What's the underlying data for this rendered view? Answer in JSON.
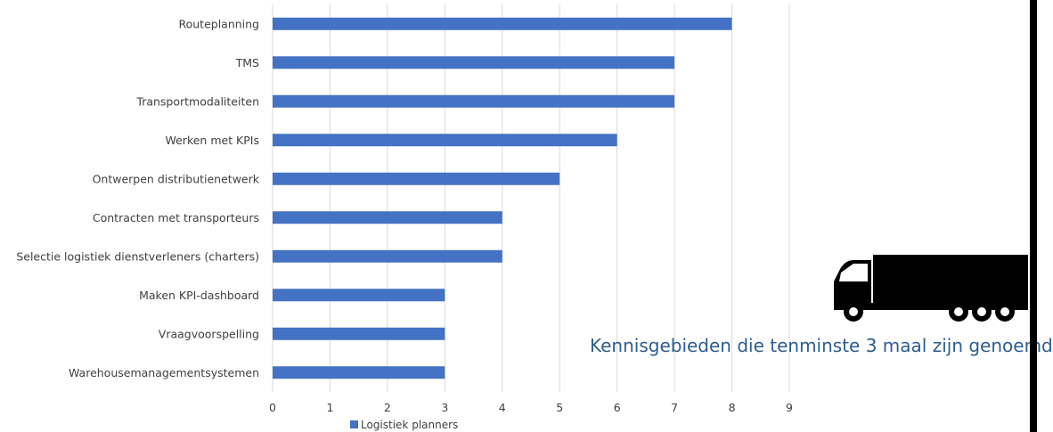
{
  "chart_data": {
    "type": "bar",
    "orientation": "horizontal",
    "categories": [
      "Routeplanning",
      "TMS",
      "Transportmodaliteiten",
      "Werken met KPIs",
      "Ontwerpen distributienetwerk",
      "Contracten met transporteurs",
      "Selectie logistiek dienstverleners (charters)",
      "Maken KPI-dashboard",
      "Vraagvoorspelling",
      "Warehousemanagementsystemen"
    ],
    "series": [
      {
        "name": "Logistiek planners",
        "values": [
          8,
          7,
          7,
          6,
          5,
          4,
          4,
          3,
          3,
          3
        ]
      }
    ],
    "xlim": [
      0,
      9
    ],
    "xticks": [
      "0",
      "1",
      "2",
      "3",
      "4",
      "5",
      "6",
      "7",
      "8",
      "9"
    ],
    "grid": "vertical",
    "legend_position": "bottom",
    "colors": {
      "bar": "#4472c4",
      "grid": "#d9d9d9",
      "text": "#404040"
    }
  },
  "annotation": {
    "caption": "Kennisgebieden die tenminste 3 maal zijn genoemd",
    "icon": "truck-icon"
  }
}
